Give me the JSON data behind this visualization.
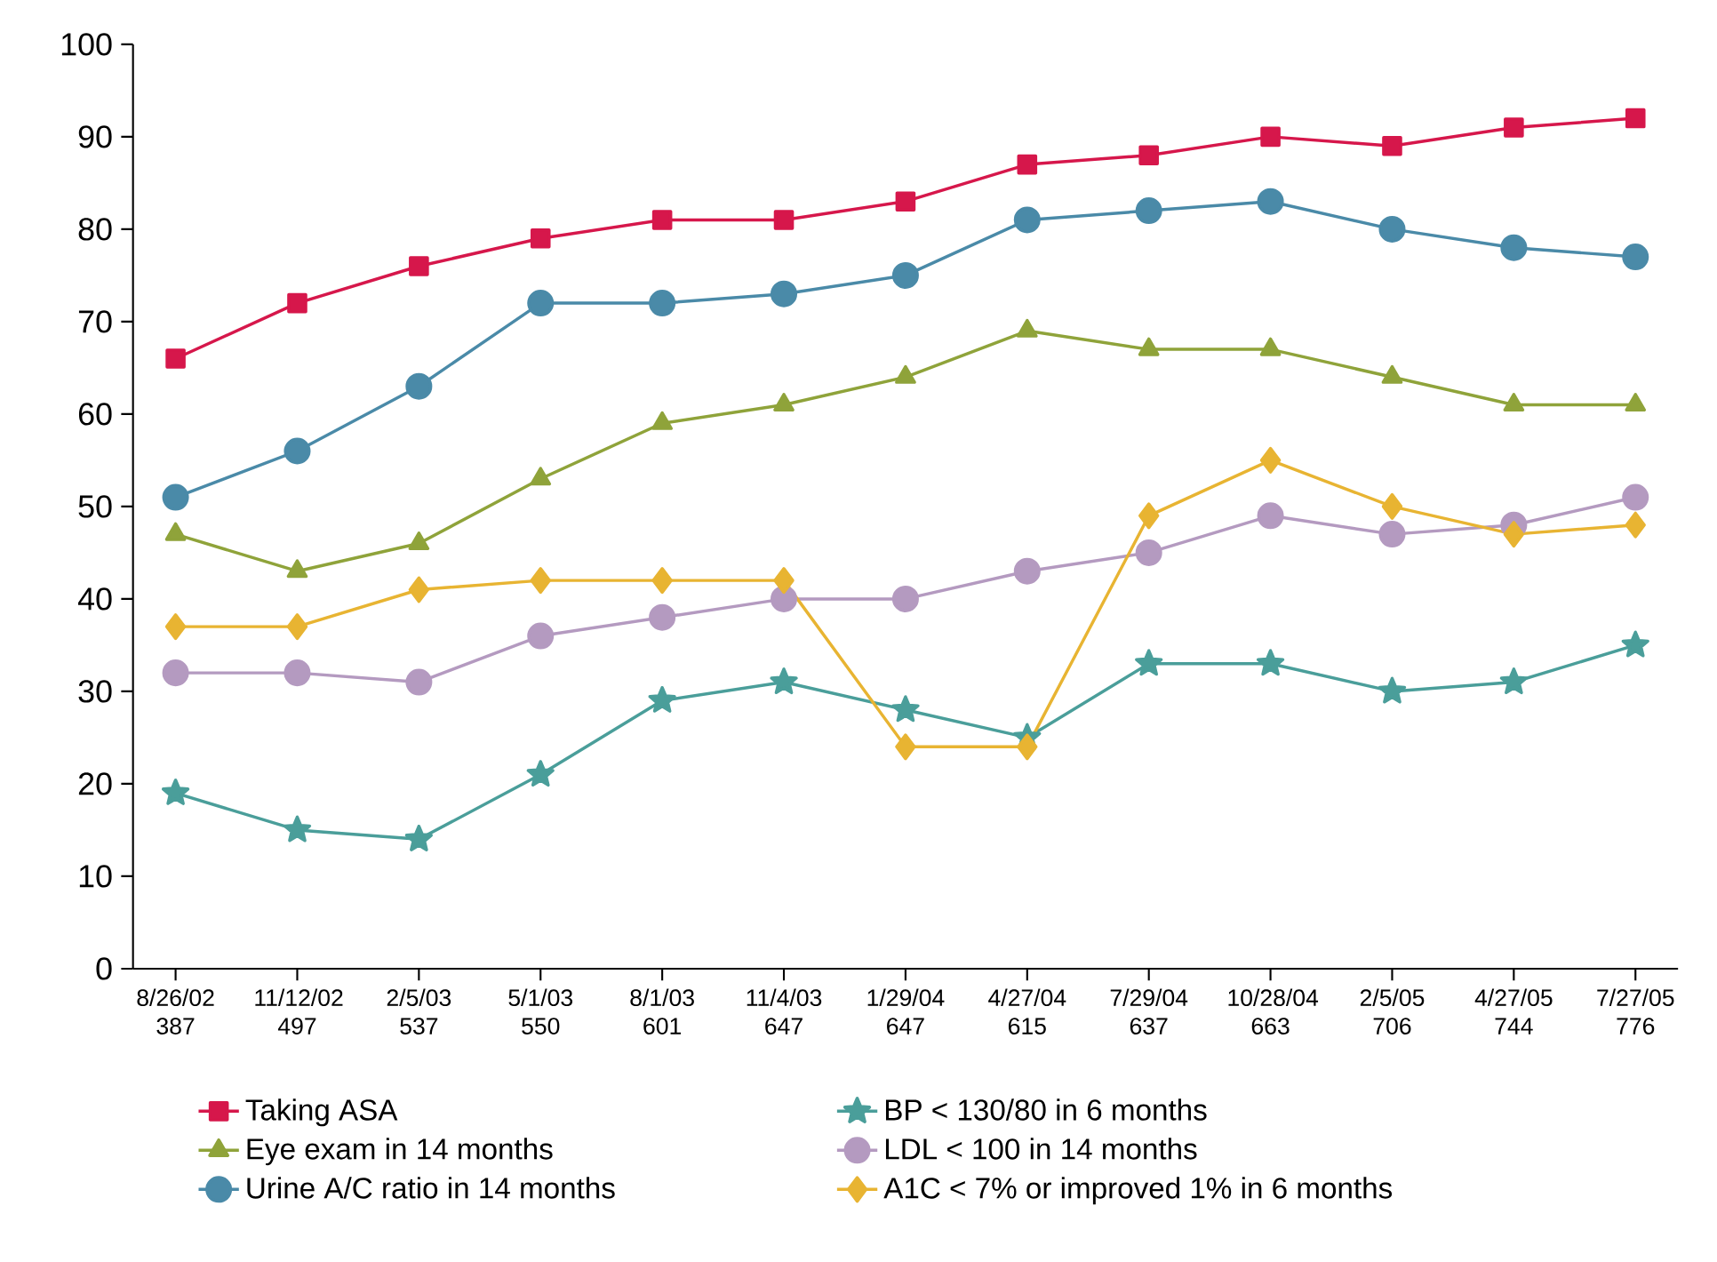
{
  "chart_data": {
    "type": "line",
    "categories": [
      "8/26/02 387",
      "11/12/02 497",
      "2/5/03 537",
      "5/1/03 550",
      "8/1/03 601",
      "11/4/03 647",
      "1/29/04 647",
      "4/27/04 615",
      "7/29/04 637",
      "10/28/04 663",
      "2/5/05 706",
      "4/27/05 744",
      "7/27/05 776"
    ],
    "ylim": [
      0,
      100
    ],
    "yticks": [
      0,
      10,
      20,
      30,
      40,
      50,
      60,
      70,
      80,
      90,
      100
    ],
    "legend": "bottom",
    "grid": false,
    "line_style": "solid",
    "series": [
      {
        "name": "Taking ASA",
        "color": "#d6174b",
        "marker": "square",
        "values": [
          66,
          72,
          76,
          79,
          81,
          81,
          83,
          87,
          88,
          90,
          89,
          91,
          92
        ]
      },
      {
        "name": "BP < 130/80 in 6 months",
        "color": "#4a9e9a",
        "marker": "star",
        "values": [
          19,
          15,
          14,
          21,
          29,
          31,
          28,
          25,
          33,
          33,
          30,
          31,
          35
        ]
      },
      {
        "name": "Eye exam in 14 months",
        "color": "#8fa33a",
        "marker": "triangle",
        "values": [
          47,
          43,
          46,
          53,
          59,
          61,
          64,
          69,
          67,
          67,
          64,
          61,
          61
        ]
      },
      {
        "name": "LDL < 100 in 14 months",
        "color": "#b49ac0",
        "marker": "circle",
        "values": [
          32,
          32,
          31,
          36,
          38,
          40,
          40,
          43,
          45,
          49,
          47,
          48,
          51
        ]
      },
      {
        "name": "Urine A/C ratio in 14 months",
        "color": "#4a8aa8",
        "marker": "circle",
        "values": [
          51,
          56,
          63,
          72,
          72,
          73,
          75,
          81,
          82,
          83,
          80,
          78,
          77
        ]
      },
      {
        "name": "A1C < 7% or improved 1% in 6 months",
        "color": "#e8b432",
        "marker": "diamond",
        "values": [
          37,
          37,
          41,
          42,
          42,
          42,
          24,
          24,
          49,
          55,
          50,
          47,
          48
        ]
      }
    ]
  }
}
